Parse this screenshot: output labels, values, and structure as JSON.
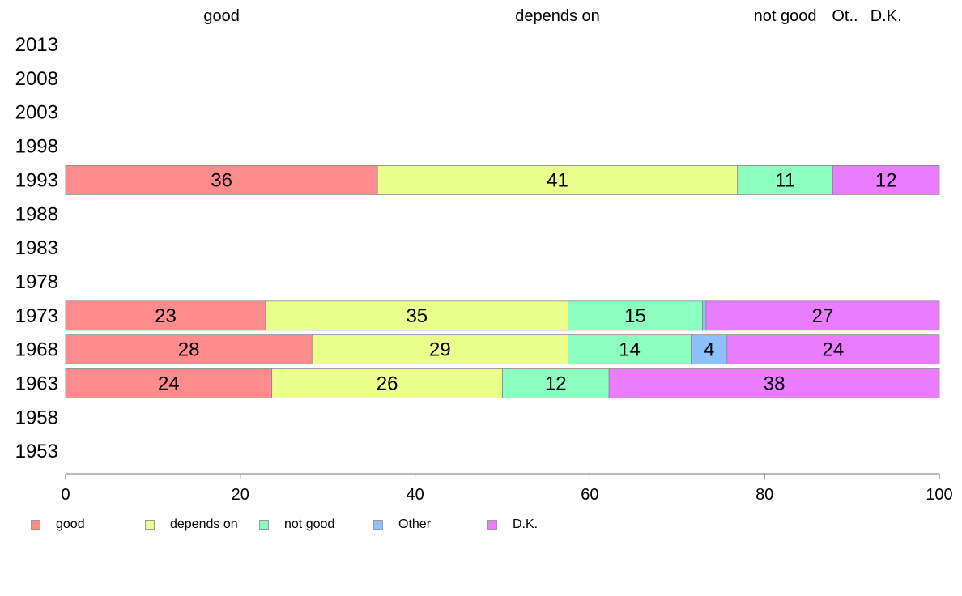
{
  "chart_data": {
    "type": "bar",
    "orientation": "horizontal",
    "stacked": true,
    "categories": [
      "2013",
      "2008",
      "2003",
      "1998",
      "1993",
      "1988",
      "1983",
      "1978",
      "1973",
      "1968",
      "1963",
      "1958",
      "1953"
    ],
    "series": [
      {
        "name": "good",
        "color": "#ff8c8c",
        "values": [
          null,
          null,
          null,
          null,
          35.7,
          null,
          null,
          null,
          22.9,
          28.2,
          23.6,
          null,
          null
        ]
      },
      {
        "name": "depends on",
        "color": "#eaff8c",
        "values": [
          null,
          null,
          null,
          null,
          41.2,
          null,
          null,
          null,
          34.6,
          29.3,
          26.4,
          null,
          null
        ]
      },
      {
        "name": "not good",
        "color": "#8cffc0",
        "values": [
          null,
          null,
          null,
          null,
          10.9,
          null,
          null,
          null,
          15.4,
          14.1,
          12.2,
          null,
          null
        ]
      },
      {
        "name": "Other",
        "color": "#8cc0ff",
        "values": [
          null,
          null,
          null,
          null,
          0,
          null,
          null,
          null,
          0.4,
          4.1,
          0,
          null,
          null
        ]
      },
      {
        "name": "D.K.",
        "color": "#ea7cff",
        "values": [
          null,
          null,
          null,
          null,
          12.2,
          null,
          null,
          null,
          26.7,
          24.3,
          37.8,
          null,
          null
        ]
      }
    ],
    "data_labels": {
      "1993": [
        "36",
        "41",
        "11",
        "",
        "12"
      ],
      "1973": [
        "23",
        "35",
        "15",
        "",
        "27"
      ],
      "1968": [
        "28",
        "29",
        "14",
        "4",
        "24"
      ],
      "1963": [
        "24",
        "26",
        "12",
        "",
        "38"
      ]
    },
    "top_labels": [
      "good",
      "depends on",
      "not good",
      "Ot..",
      "D.K."
    ],
    "x_ticks": [
      0,
      20,
      40,
      60,
      80,
      100
    ],
    "xlim": [
      0,
      100
    ],
    "title": "",
    "xlabel": "",
    "ylabel": "",
    "grid": false,
    "legend_position": "bottom-left"
  }
}
